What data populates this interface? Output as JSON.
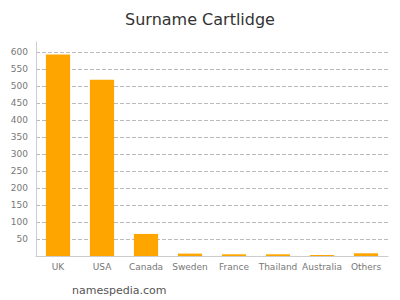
{
  "chart_data": {
    "type": "bar",
    "title": "Surname Cartlidge",
    "categories": [
      "UK",
      "USA",
      "Canada",
      "Sweden",
      "France",
      "Thailand",
      "Australia",
      "Others"
    ],
    "values": [
      593,
      519,
      65,
      7,
      5,
      5,
      3,
      8
    ],
    "color": "#FFA500",
    "ylim": [
      0,
      630
    ],
    "yticks": [
      50,
      100,
      150,
      200,
      250,
      300,
      350,
      400,
      450,
      500,
      550,
      600
    ],
    "grid": true,
    "annotations": [
      "namespedia.com"
    ]
  }
}
